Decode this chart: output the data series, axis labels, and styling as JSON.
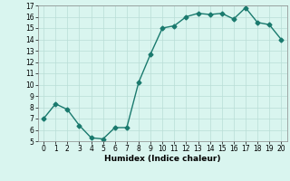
{
  "x": [
    0,
    1,
    2,
    3,
    4,
    5,
    6,
    7,
    8,
    9,
    10,
    11,
    12,
    13,
    14,
    15,
    16,
    17,
    18,
    19,
    20
  ],
  "y": [
    7.0,
    8.3,
    7.8,
    6.4,
    5.3,
    5.2,
    6.2,
    6.2,
    10.2,
    12.7,
    15.0,
    15.2,
    16.0,
    16.3,
    16.2,
    16.3,
    15.8,
    16.8,
    15.5,
    15.3,
    14.0
  ],
  "line_color": "#1a7a6e",
  "marker": "D",
  "marker_size": 2.5,
  "bg_color": "#d9f5ef",
  "grid_color": "#b8ddd6",
  "xlabel": "Humidex (Indice chaleur)",
  "ylim": [
    5,
    17
  ],
  "xlim": [
    -0.5,
    20.5
  ],
  "yticks": [
    5,
    6,
    7,
    8,
    9,
    10,
    11,
    12,
    13,
    14,
    15,
    16,
    17
  ],
  "xticks": [
    0,
    1,
    2,
    3,
    4,
    5,
    6,
    7,
    8,
    9,
    10,
    11,
    12,
    13,
    14,
    15,
    16,
    17,
    18,
    19,
    20
  ],
  "tick_fontsize": 5.5,
  "xlabel_fontsize": 6.5,
  "line_width": 1.0
}
